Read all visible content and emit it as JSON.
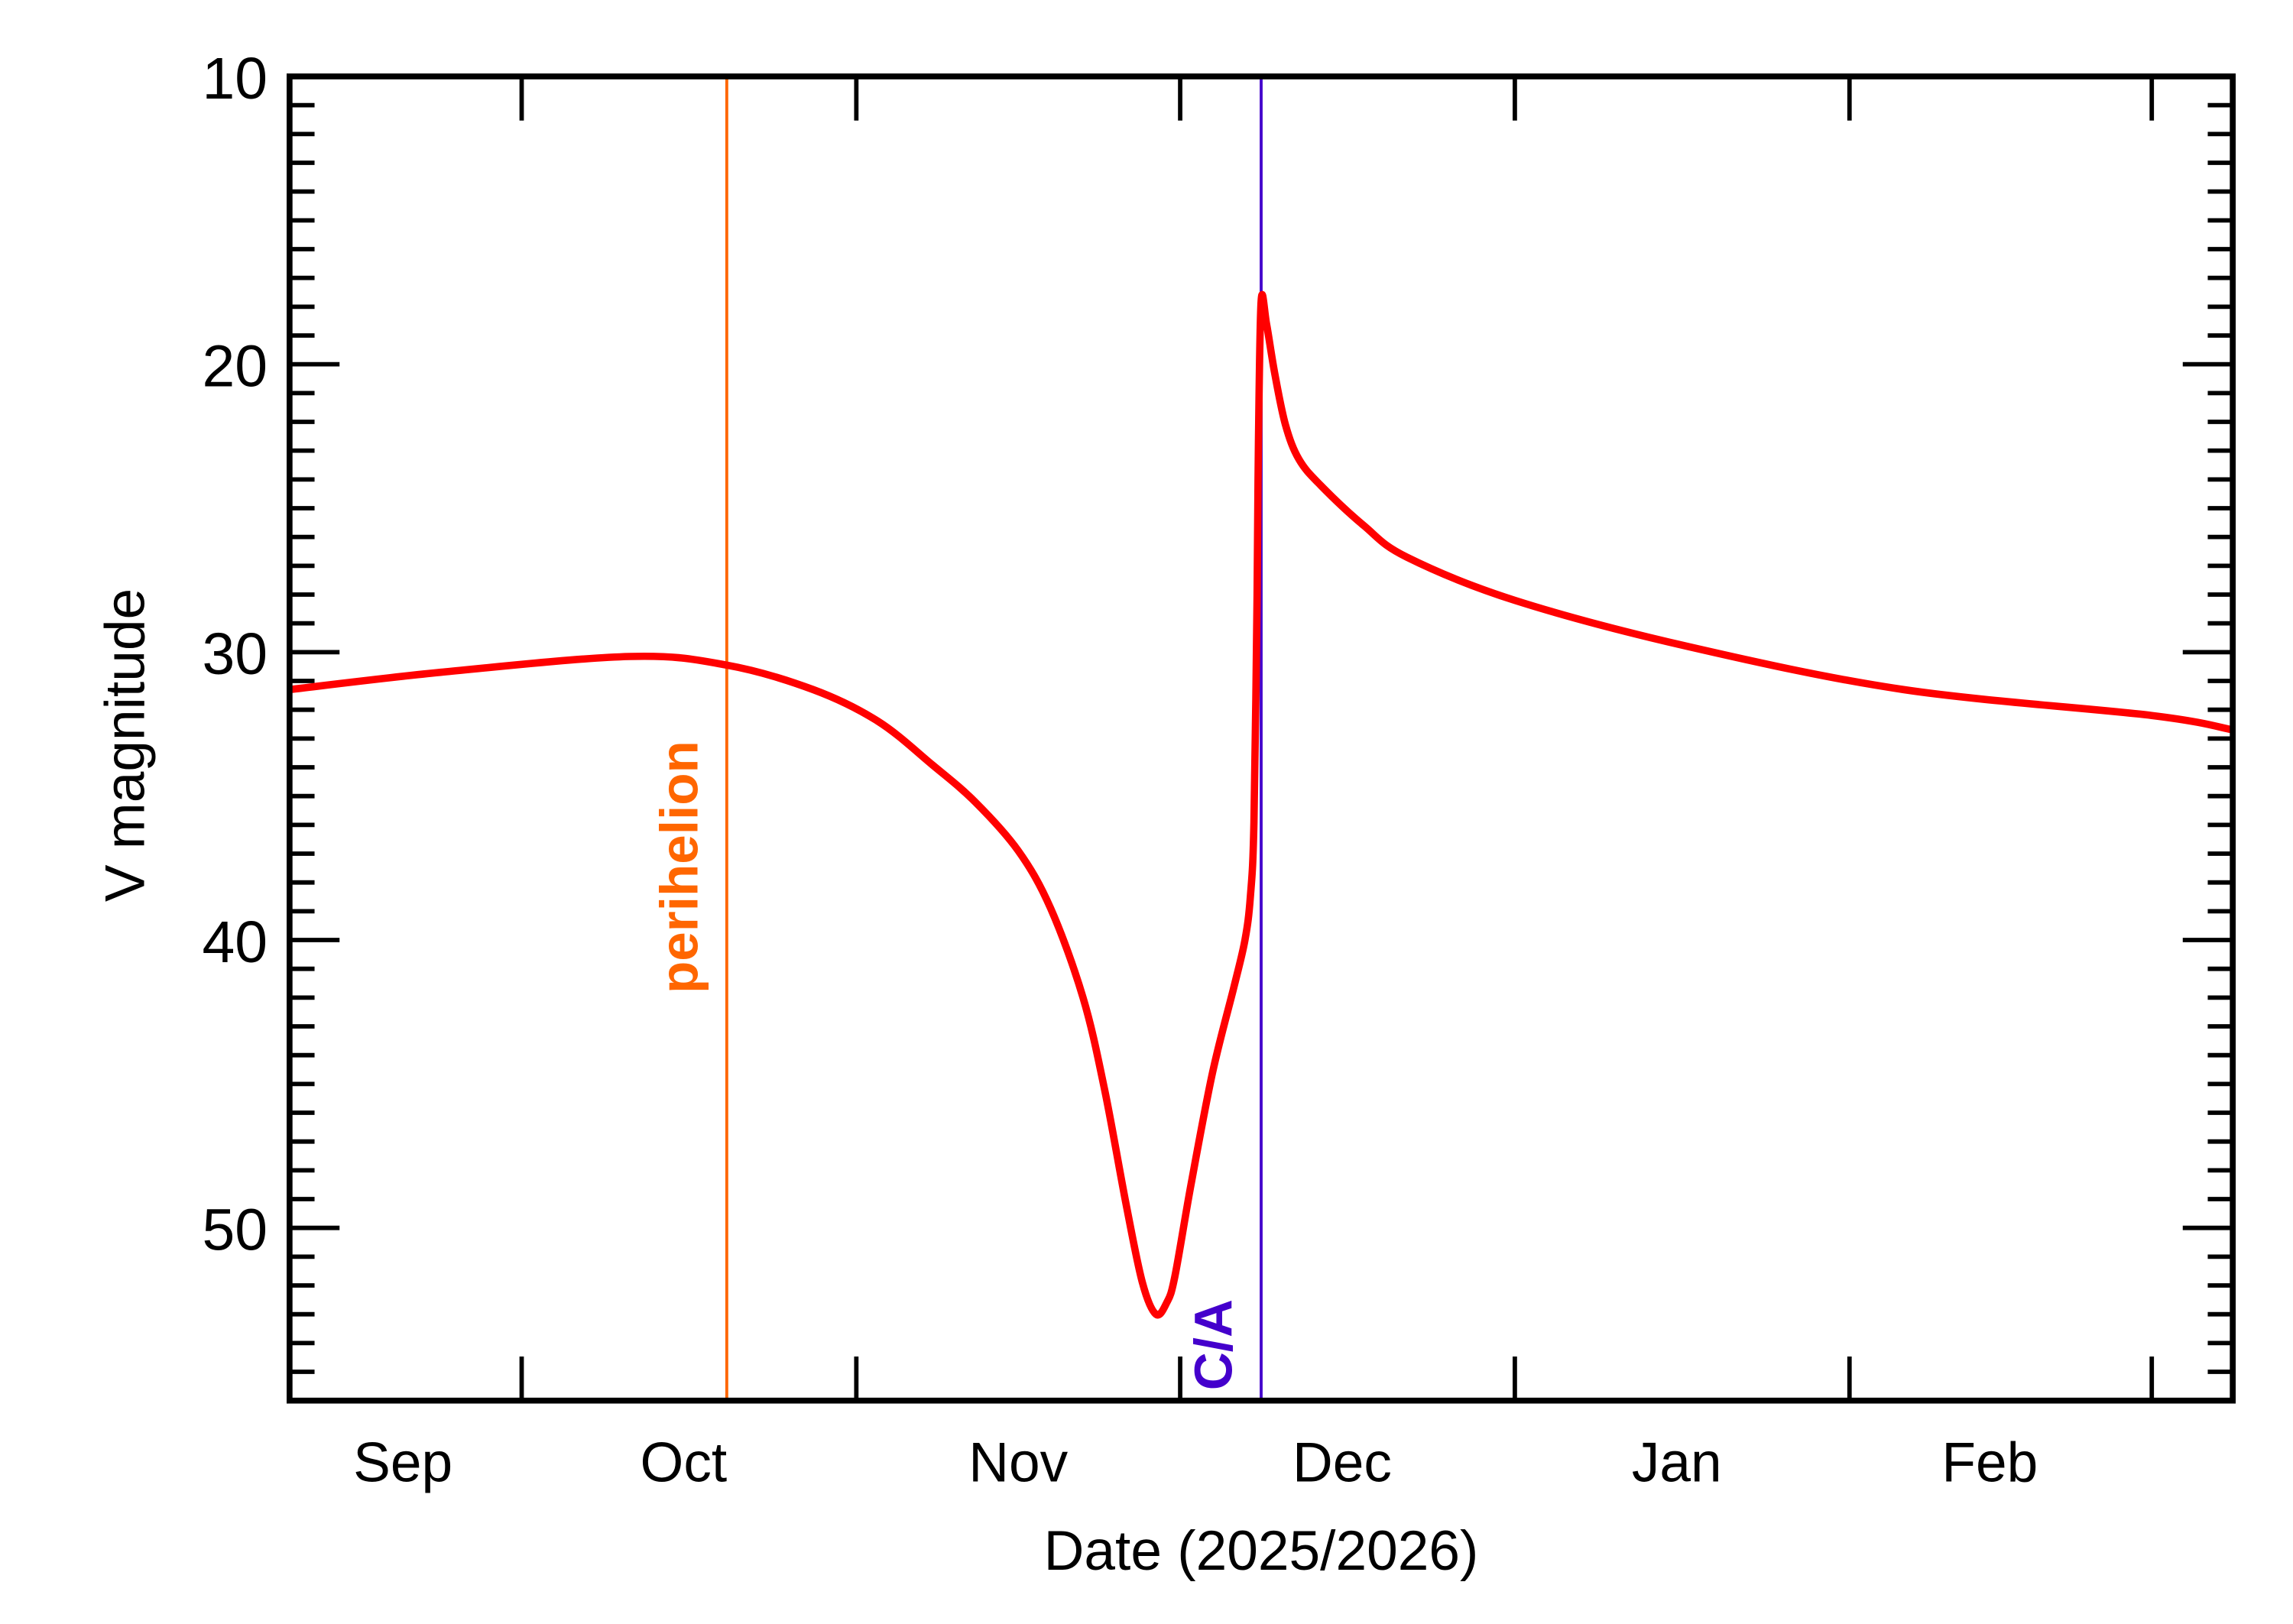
{
  "chart_data": {
    "type": "line",
    "title": "",
    "xlabel": "Date (2025/2026)",
    "ylabel": "V magnitude",
    "xlim": [
      "2025-09-09T12:00",
      "2026-03-08T12:00"
    ],
    "ylim": [
      56,
      10
    ],
    "y_inverted": true,
    "grid": false,
    "yticks": [
      10,
      20,
      30,
      40,
      50
    ],
    "ytick_labels": [
      "10",
      "20",
      "30",
      "40",
      "50"
    ],
    "x_month_boundaries": [
      "2025-10-01",
      "2025-11-01",
      "2025-12-01",
      "2026-01-01",
      "2026-02-01",
      "2026-03-01"
    ],
    "x_month_labels": [
      {
        "label": "Sep",
        "center": "2025-09-20"
      },
      {
        "label": "Oct",
        "center": "2025-10-16"
      },
      {
        "label": "Nov",
        "center": "2025-11-16"
      },
      {
        "label": "Dec",
        "center": "2025-12-16"
      },
      {
        "label": "Jan",
        "center": "2026-01-16"
      },
      {
        "label": "Feb",
        "center": "2026-02-14"
      }
    ],
    "series": [
      {
        "color": "#ff0000",
        "points": [
          [
            "2025-09-09T12:00",
            31.3
          ],
          [
            "2025-09-23T12:00",
            30.7
          ],
          [
            "2025-10-11",
            30.15
          ],
          [
            "2025-10-20",
            30.45
          ],
          [
            "2025-10-28",
            31.3
          ],
          [
            "2025-11-03",
            32.4
          ],
          [
            "2025-11-08",
            33.9
          ],
          [
            "2025-11-12",
            35.2
          ],
          [
            "2025-11-16",
            36.9
          ],
          [
            "2025-11-19",
            38.9
          ],
          [
            "2025-11-22",
            42.0
          ],
          [
            "2025-11-24",
            45.2
          ],
          [
            "2025-11-26",
            49.2
          ],
          [
            "2025-11-27T12:00",
            51.9
          ],
          [
            "2025-11-28T18:00",
            53.0
          ],
          [
            "2025-11-29T18:00",
            52.6
          ],
          [
            "2025-11-30T12:00",
            51.7
          ],
          [
            "2025-12-02",
            48.5
          ],
          [
            "2025-12-04",
            44.6
          ],
          [
            "2025-12-06",
            41.6
          ],
          [
            "2025-12-07",
            40.0
          ],
          [
            "2025-12-07T12:00",
            38.5
          ],
          [
            "2025-12-07T20:00",
            35.9
          ],
          [
            "2025-12-08T03:00",
            28.0
          ],
          [
            "2025-12-08T06:00",
            22.7
          ],
          [
            "2025-12-08T12:00",
            17.8
          ],
          [
            "2025-12-09",
            18.6
          ],
          [
            "2025-12-09T18:00",
            20.3
          ],
          [
            "2025-12-10T18:00",
            22.1
          ],
          [
            "2025-12-12",
            23.3
          ],
          [
            "2025-12-14",
            24.2
          ],
          [
            "2025-12-18",
            25.6
          ],
          [
            "2025-12-22",
            26.7
          ],
          [
            "2026-01-01",
            28.2
          ],
          [
            "2026-01-17",
            29.8
          ],
          [
            "2026-02-06",
            31.3
          ],
          [
            "2026-03-01",
            32.2
          ],
          [
            "2026-03-08T12:00",
            32.7
          ]
        ]
      }
    ],
    "annotations": [
      {
        "label": "perihelion",
        "date": "2025-10-20",
        "color": "#ff6600"
      },
      {
        "label": "C/A",
        "date": "2025-12-08T12:00",
        "color": "#4400cc"
      }
    ]
  }
}
